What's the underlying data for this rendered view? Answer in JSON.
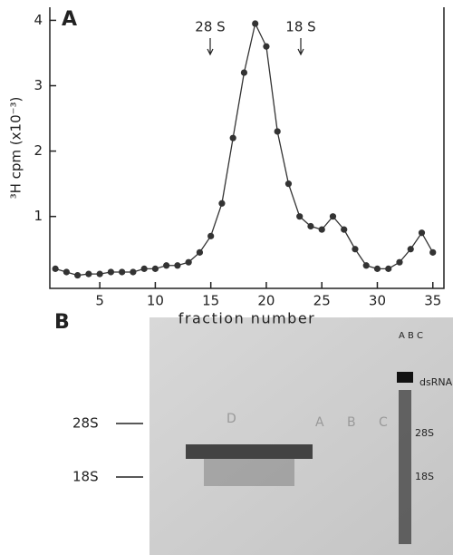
{
  "chart_data": {
    "type": "line",
    "panel_label": "A",
    "y_label": "³H cpm (x10⁻³)",
    "x_label": "fraction number",
    "annotations": [
      "28 S",
      "18 S"
    ],
    "x": [
      1,
      2,
      3,
      4,
      5,
      6,
      7,
      8,
      9,
      10,
      11,
      12,
      13,
      14,
      15,
      16,
      17,
      18,
      19,
      20,
      21,
      22,
      23,
      24,
      25,
      26,
      27,
      28,
      29,
      30,
      31,
      32,
      33,
      34,
      35
    ],
    "series": [
      {
        "color": "#333333",
        "values": [
          0.2,
          0.15,
          0.1,
          0.12,
          0.12,
          0.15,
          0.15,
          0.15,
          0.2,
          0.2,
          0.25,
          0.25,
          0.3,
          0.45,
          0.7,
          1.2,
          2.2,
          3.2,
          3.95,
          3.6,
          2.3,
          1.5,
          1.0,
          0.85,
          0.8,
          1.0,
          0.8,
          0.5,
          0.25,
          0.2,
          0.2,
          0.3,
          0.5,
          0.75,
          0.45
        ]
      }
    ],
    "xlim": [
      0.5,
      36
    ],
    "ylim": [
      -0.1,
      4.2
    ],
    "xticks": [
      5,
      10,
      15,
      20,
      25,
      30,
      35
    ],
    "yticks": [
      1,
      2,
      3,
      4
    ]
  },
  "gel": {
    "panel_label": "B",
    "left_markers": [
      "28S",
      "18S"
    ],
    "lane_letters": [
      "A",
      "B",
      "C",
      "D"
    ],
    "right_lanes": "A B C",
    "right_markers": [
      "dsRNA",
      "28S",
      "18S"
    ]
  }
}
